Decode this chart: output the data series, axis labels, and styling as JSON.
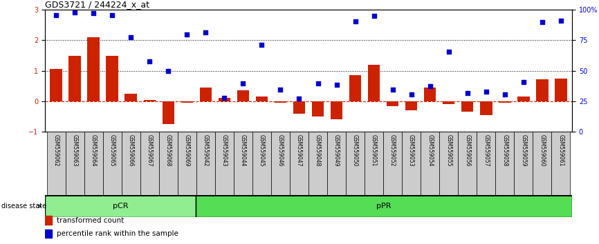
{
  "title": "GDS3721 / 244224_x_at",
  "samples": [
    "GSM559062",
    "GSM559063",
    "GSM559064",
    "GSM559065",
    "GSM559066",
    "GSM559067",
    "GSM559068",
    "GSM559069",
    "GSM559042",
    "GSM559043",
    "GSM559044",
    "GSM559045",
    "GSM559046",
    "GSM559047",
    "GSM559048",
    "GSM559049",
    "GSM559050",
    "GSM559051",
    "GSM559052",
    "GSM559053",
    "GSM559054",
    "GSM559055",
    "GSM559056",
    "GSM559057",
    "GSM559058",
    "GSM559059",
    "GSM559060",
    "GSM559061"
  ],
  "transformed_count": [
    1.05,
    1.5,
    2.1,
    1.5,
    0.25,
    0.05,
    -0.75,
    -0.05,
    0.45,
    0.1,
    0.35,
    0.15,
    -0.05,
    -0.4,
    -0.5,
    -0.6,
    0.85,
    1.2,
    -0.15,
    -0.3,
    0.45,
    -0.1,
    -0.35,
    -0.45,
    -0.05,
    0.15,
    0.72,
    0.75
  ],
  "percentile_rank": [
    2.82,
    2.92,
    2.9,
    2.82,
    2.1,
    1.3,
    1.0,
    2.2,
    2.25,
    0.12,
    0.58,
    1.85,
    0.38,
    0.08,
    0.58,
    0.55,
    2.62,
    2.8,
    0.38,
    0.22,
    0.5,
    1.62,
    0.28,
    0.32,
    0.22,
    0.62,
    2.6,
    2.65
  ],
  "pCR_count": 8,
  "pPR_count": 20,
  "bar_color": "#cc2200",
  "dot_color": "#0000cc",
  "pCR_color": "#90ee90",
  "pPR_color": "#55dd55",
  "ylim": [
    -1,
    3
  ],
  "dotted_lines": [
    1.0,
    2.0
  ],
  "zero_line_color": "#cc2200",
  "background_color": "#ffffff",
  "label_bg_color": "#cccccc"
}
